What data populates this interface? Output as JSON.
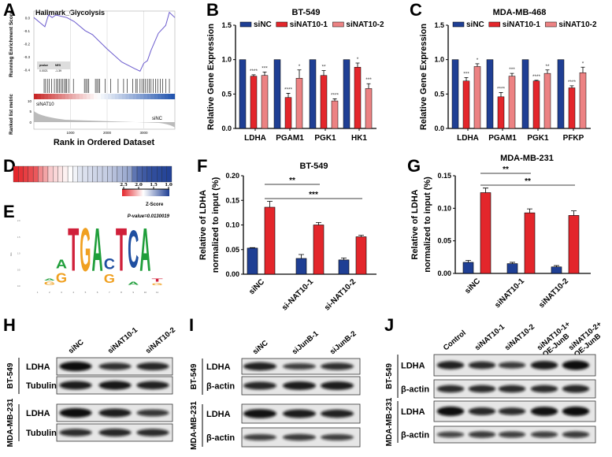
{
  "panel_labels": [
    "A",
    "B",
    "C",
    "D",
    "E",
    "F",
    "G",
    "H",
    "I",
    "J"
  ],
  "colors": {
    "blue": "#1f3f94",
    "red": "#e3262b",
    "pink": "#ec8283",
    "gsea_line": "#6a5acd"
  },
  "chart_data": [
    {
      "id": "A",
      "type": "line",
      "title": "Hallmark_Glycolysis",
      "ylabel": "Running Enrichment Score",
      "xlabel": "Rank in Ordered Dataset",
      "ylabel2": "Ranked list metric",
      "xlim": [
        0,
        3850
      ],
      "ylim": [
        -0.45,
        0.05
      ],
      "yticks": [
        "0.0",
        "-0.1",
        "-0.2",
        "-0.3",
        "-0.4"
      ],
      "xticks": [
        "1000",
        "2000",
        "3000"
      ],
      "metric_ticks": [
        "10",
        "5",
        "0"
      ],
      "x": [
        0,
        300,
        400,
        500,
        600,
        900,
        1100,
        1400,
        1600,
        2000,
        2400,
        2750,
        2900,
        3000,
        3100,
        3200,
        3400,
        3600,
        3700,
        3850
      ],
      "y": [
        0,
        -0.07,
        0.02,
        0.0,
        0.02,
        0.0,
        -0.03,
        -0.1,
        -0.13,
        -0.24,
        -0.34,
        -0.39,
        -0.41,
        -0.35,
        -0.33,
        -0.25,
        -0.12,
        -0.06,
        0.04,
        0.0
      ],
      "hits": [
        280,
        320,
        370,
        420,
        480,
        560,
        620,
        660,
        700,
        740,
        780,
        830,
        870,
        900,
        960,
        1080,
        1380,
        1420,
        1460,
        1500,
        1680,
        1720,
        1760,
        1800,
        1950,
        2100,
        2300,
        2450,
        2550,
        2700,
        2780,
        2820,
        2900,
        2950,
        3000,
        3050,
        3100,
        3150,
        3200,
        3260,
        3320,
        3380,
        3450,
        3520,
        3600,
        3700
      ],
      "table": {
        "headers": [
          "pvalue",
          "NES"
        ],
        "values": [
          "0.0021",
          "-1.39"
        ]
      },
      "left_label": "siNAT10",
      "right_label": "siNC"
    },
    {
      "id": "B",
      "type": "bar",
      "title": "BT-549",
      "ylabel": "Relative Gene Expression",
      "ylim": [
        0,
        1.5
      ],
      "yticks": [
        "0.0",
        "0.5",
        "1.0",
        "1.5"
      ],
      "categories": [
        "LDHA",
        "PGAM1",
        "PGK1",
        "HK1"
      ],
      "series": [
        {
          "name": "siNC",
          "values": [
            1,
            1,
            1,
            1
          ],
          "errors": [
            0,
            0,
            0,
            0
          ],
          "sig": [
            "",
            "",
            "",
            ""
          ]
        },
        {
          "name": "siNAT10-1",
          "values": [
            0.76,
            0.45,
            0.77,
            0.89
          ],
          "errors": [
            0.02,
            0.06,
            0.07,
            0.06
          ],
          "sig": [
            "****",
            "****",
            "**",
            "*"
          ]
        },
        {
          "name": "siNAT10-2",
          "values": [
            0.77,
            0.73,
            0.4,
            0.58
          ],
          "errors": [
            0.05,
            0.12,
            0.03,
            0.07
          ],
          "sig": [
            "***",
            "*",
            "****",
            "***"
          ]
        }
      ],
      "legend": "top"
    },
    {
      "id": "C",
      "type": "bar",
      "title": "MDA-MB-468",
      "ylabel": "Relative Gene Expression",
      "ylim": [
        0,
        1.5
      ],
      "yticks": [
        "0.0",
        "0.5",
        "1.0",
        "1.5"
      ],
      "categories": [
        "LDHA",
        "PGAM1",
        "PGK1",
        "PFKP"
      ],
      "series": [
        {
          "name": "siNC",
          "values": [
            1,
            1,
            1,
            1
          ],
          "errors": [
            0,
            0,
            0,
            0
          ],
          "sig": [
            "",
            "",
            "",
            ""
          ]
        },
        {
          "name": "siNAT10-1",
          "values": [
            0.69,
            0.46,
            0.69,
            0.59
          ],
          "errors": [
            0.05,
            0.06,
            0.01,
            0.03
          ],
          "sig": [
            "***",
            "****",
            "****",
            "****"
          ]
        },
        {
          "name": "siNAT10-2",
          "values": [
            0.9,
            0.76,
            0.8,
            0.81
          ],
          "errors": [
            0.04,
            0.04,
            0.05,
            0.08
          ],
          "sig": [
            "*",
            "***",
            "**",
            "*"
          ]
        }
      ],
      "legend": "top"
    },
    {
      "id": "D",
      "type": "heatmap",
      "zlabel": "Z-Score",
      "zticks": [
        "2.5",
        "2.0",
        "1.5",
        "1.0"
      ],
      "values": [
        2.9,
        2.85,
        2.8,
        2.75,
        2.7,
        2.5,
        2.4,
        2.25,
        2.2,
        2.15,
        2.1,
        2.05,
        1.98,
        1.9,
        1.88,
        1.85,
        1.82,
        1.8,
        1.78,
        1.75,
        1.7,
        1.65,
        1.6,
        1.55,
        1.3,
        1.2,
        1.15,
        1.1,
        1.08,
        1.06,
        1.04,
        1.02
      ]
    },
    {
      "id": "E",
      "type": "sequence-logo",
      "pvalue_label": "P-value=0.0130019",
      "ylabel": "bits",
      "yticks": [
        "0.0",
        "0.5",
        "1.0",
        "1.5",
        "2.0"
      ],
      "positions": [
        "1",
        "2",
        "3",
        "4",
        "5",
        "6",
        "7",
        "8",
        "9",
        "10",
        "11"
      ],
      "letters": [
        [],
        [
          {
            "l": "G",
            "h": 0.15
          },
          {
            "l": "A",
            "h": 0.1
          }
        ],
        [
          {
            "l": "G",
            "h": 0.45
          },
          {
            "l": "A",
            "h": 0.4
          }
        ],
        [
          {
            "l": "T",
            "h": 2.0
          }
        ],
        [
          {
            "l": "G",
            "h": 2.0
          }
        ],
        [
          {
            "l": "A",
            "h": 2.0
          }
        ],
        [
          {
            "l": "G",
            "h": 0.4
          },
          {
            "l": "C",
            "h": 0.5
          }
        ],
        [
          {
            "l": "T",
            "h": 2.0
          }
        ],
        [
          {
            "l": "A",
            "h": 0.15
          },
          {
            "l": "C",
            "h": 1.75
          }
        ],
        [
          {
            "l": "A",
            "h": 2.0
          }
        ],
        [
          {
            "l": "G",
            "h": 0.1
          },
          {
            "l": "T",
            "h": 0.15
          }
        ]
      ]
    },
    {
      "id": "F",
      "type": "bar",
      "title": "BT-549",
      "ylabel": "Relative of LDHA",
      "ylabel2": "normalized to input (%)",
      "ylim": [
        0,
        0.2
      ],
      "yticks": [
        "0.00",
        "0.05",
        "0.10",
        "0.15",
        "0.20"
      ],
      "categories": [
        "siNC",
        "si-NAT10-1",
        "si-NAT10-2"
      ],
      "series": [
        {
          "color": "blue",
          "values": [
            0.053,
            0.032,
            0.029
          ],
          "errors": [
            0.001,
            0.008,
            0.004
          ]
        },
        {
          "color": "red",
          "values": [
            0.136,
            0.1,
            0.076
          ],
          "errors": [
            0.012,
            0.005,
            0.003
          ]
        }
      ],
      "comparisons": [
        {
          "from": 0,
          "to": 1,
          "label": "**"
        },
        {
          "from": 0,
          "to": 2,
          "label": "***"
        }
      ]
    },
    {
      "id": "G",
      "type": "bar",
      "title": "MDA-MB-231",
      "ylabel": "Relative of LDHA",
      "ylabel2": "normalized to input (%)",
      "ylim": [
        0,
        0.15
      ],
      "yticks": [
        "0.00",
        "0.05",
        "0.10",
        "0.15"
      ],
      "categories": [
        "siNC",
        "siNAT10-1",
        "siNAT10-2"
      ],
      "series": [
        {
          "color": "blue",
          "values": [
            0.017,
            0.015,
            0.01
          ],
          "errors": [
            0.003,
            0.002,
            0.002
          ]
        },
        {
          "color": "red",
          "values": [
            0.124,
            0.093,
            0.089
          ],
          "errors": [
            0.007,
            0.006,
            0.007
          ]
        }
      ],
      "comparisons": [
        {
          "from": 0,
          "to": 1,
          "label": "**"
        },
        {
          "from": 0,
          "to": 2,
          "label": "**"
        }
      ]
    }
  ],
  "blots": [
    {
      "id": "H",
      "lanes": [
        "siNC",
        "siNAT10-1",
        "siNAT10-2"
      ],
      "groups": [
        {
          "cell_line": "BT-549",
          "rows": [
            {
              "label": "LDHA",
              "intensity": [
                1.0,
                0.65,
                0.75
              ]
            },
            {
              "label": "Tubulin",
              "intensity": [
                0.85,
                0.9,
                0.8
              ]
            }
          ]
        },
        {
          "cell_line": "MDA-MB-231",
          "rows": [
            {
              "label": "LDHA",
              "intensity": [
                1.0,
                0.85,
                0.6
              ]
            },
            {
              "label": "Tubulin",
              "intensity": [
                0.7,
                0.75,
                0.7
              ]
            }
          ]
        }
      ]
    },
    {
      "id": "I",
      "lanes": [
        "siNC",
        "siJunB-1",
        "siJunB-2"
      ],
      "groups": [
        {
          "cell_line": "BT-549",
          "rows": [
            {
              "label": "LDHA",
              "intensity": [
                0.8,
                0.5,
                0.65
              ]
            },
            {
              "label": "β-actin",
              "intensity": [
                0.75,
                0.85,
                0.85
              ]
            }
          ]
        },
        {
          "cell_line": "MDA-MB-231",
          "rows": [
            {
              "label": "LDHA",
              "intensity": [
                0.95,
                0.85,
                0.8
              ]
            },
            {
              "label": "β-actin",
              "intensity": [
                0.5,
                0.55,
                0.5
              ]
            }
          ]
        }
      ]
    },
    {
      "id": "J",
      "lanes": [
        "Control",
        "siNAT10-1",
        "siNAT10-2",
        "siNAT10-1+\nOE-JunB",
        "siNAT10-2+\nOE-JunB"
      ],
      "groups": [
        {
          "cell_line": "BT-549",
          "rows": [
            {
              "label": "LDHA",
              "intensity": [
                0.8,
                0.7,
                0.55,
                0.85,
                1.0
              ]
            },
            {
              "label": "β-actin",
              "intensity": [
                0.7,
                0.7,
                0.7,
                0.7,
                0.75
              ]
            }
          ]
        },
        {
          "cell_line": "MDA-MB-231",
          "rows": [
            {
              "label": "LDHA",
              "intensity": [
                1.0,
                0.75,
                0.7,
                0.95,
                1.0
              ]
            },
            {
              "label": "β-actin",
              "intensity": [
                0.45,
                0.55,
                0.5,
                0.5,
                0.55
              ]
            }
          ]
        }
      ]
    }
  ]
}
